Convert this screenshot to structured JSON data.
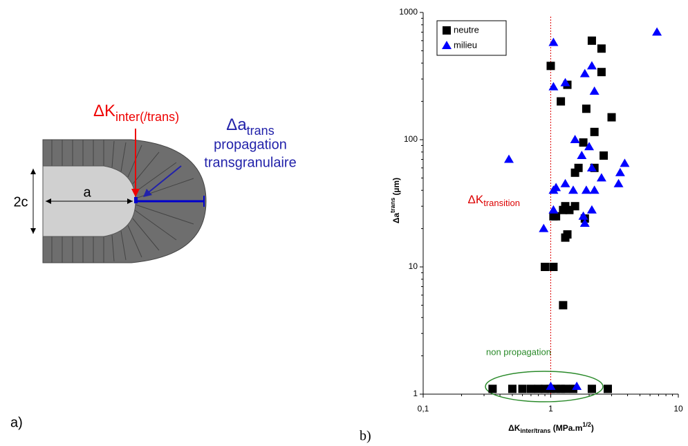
{
  "diagram": {
    "dk_main": "ΔK",
    "dk_sub": "inter(/trans)",
    "da_main": "Δa",
    "da_sub": "trans",
    "da_line2": "propagation",
    "da_line3": "transgranulaire",
    "a_label": "a",
    "c_label": "2c",
    "panel": "a)"
  },
  "chart_data": {
    "type": "scatter",
    "panel": "b)",
    "x_label": {
      "main": "ΔK",
      "sub": "inter/trans",
      "unit": " (MPa.m",
      "sup": "1/2",
      "close": ")"
    },
    "y_label": {
      "main": "Δa",
      "sup": "trans",
      "unit": " (µm)"
    },
    "xlim": [
      0.1,
      10
    ],
    "ylim": [
      1,
      1000
    ],
    "log_x": true,
    "log_y": true,
    "xticks": [
      {
        "value": 0.1,
        "label": "0,1"
      },
      1,
      10
    ],
    "yticks": [
      1,
      10,
      100,
      1000
    ],
    "legend": "top-left",
    "series": [
      {
        "name": "neutre",
        "color": "#000000",
        "marker": "square",
        "x": [
          2.1,
          2.5,
          1.0,
          2.5,
          1.35,
          1.2,
          1.9,
          3.0,
          2.2,
          2.6,
          1.8,
          1.65,
          1.55,
          1.55,
          2.2,
          1.4,
          1.1,
          1.05,
          1.25,
          1.3,
          1.85,
          1.35,
          1.3,
          0.9,
          1.05,
          1.25,
          0.35,
          0.5,
          0.6,
          0.7,
          0.8,
          0.9,
          1.0,
          1.1,
          1.2,
          1.3,
          1.5,
          2.1,
          2.8
        ],
        "values": [
          600,
          520,
          380,
          340,
          270,
          200,
          175,
          150,
          115,
          75,
          95,
          60,
          55,
          30,
          60,
          28,
          25,
          25,
          28,
          30,
          24,
          18,
          17,
          10,
          10,
          5,
          1.1,
          1.1,
          1.1,
          1.1,
          1.1,
          1.1,
          1.1,
          1.1,
          1.1,
          1.1,
          1.1,
          1.1,
          1.1
        ]
      },
      {
        "name": "milieu",
        "color": "#0000ff",
        "marker": "triangle",
        "x": [
          6.8,
          1.05,
          2.1,
          1.85,
          1.3,
          1.05,
          2.2,
          1.55,
          1.75,
          2.0,
          0.47,
          2.1,
          3.8,
          3.5,
          2.5,
          3.4,
          1.3,
          1.1,
          1.05,
          1.5,
          1.9,
          2.2,
          1.05,
          2.1,
          1.8,
          1.85,
          0.88,
          1.6,
          1.0
        ],
        "values": [
          700,
          580,
          380,
          330,
          280,
          260,
          240,
          100,
          75,
          88,
          70,
          60,
          65,
          55,
          50,
          45,
          45,
          42,
          40,
          40,
          40,
          40,
          28,
          28,
          25,
          22,
          20,
          1.15,
          1.15
        ]
      }
    ],
    "transition": {
      "x": 1,
      "main": "ΔK",
      "sub": "transition",
      "color": "#dd0000"
    },
    "non_propagation": {
      "label": "non propagation",
      "color": "#2a8a2a"
    }
  }
}
